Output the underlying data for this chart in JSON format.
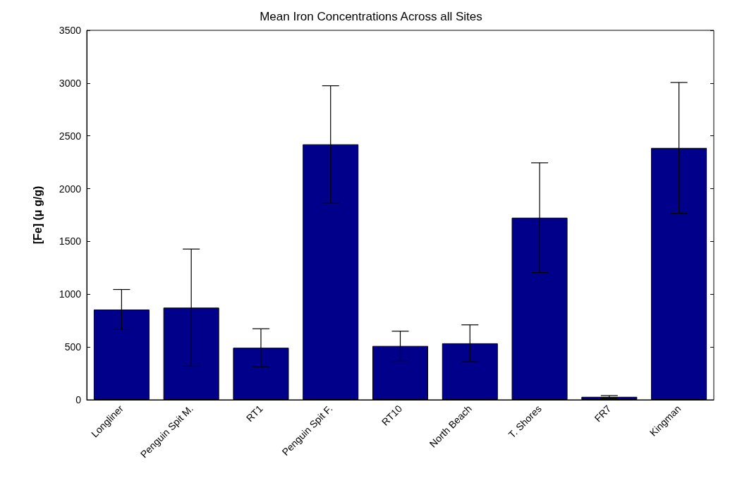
{
  "chart_data": {
    "type": "bar",
    "title": "Mean Iron Concentrations Across all Sites",
    "ylabel": "[Fe] (μ g/g)",
    "categories": [
      "Longliner",
      "Penguin Spit M.",
      "RT1",
      "Penguin Spit F.",
      "RT10",
      "North Beach",
      "T. Shores",
      "FR7",
      "Kingman"
    ],
    "values": [
      855,
      873,
      493,
      2420,
      510,
      535,
      1725,
      28,
      2386
    ],
    "errors": [
      190,
      555,
      180,
      555,
      140,
      175,
      520,
      12,
      620
    ],
    "color": "#00008b",
    "ylim": [
      0,
      3500
    ],
    "yticks": [
      0,
      500,
      1000,
      1500,
      2000,
      2500,
      3000,
      3500
    ],
    "grid": false
  }
}
